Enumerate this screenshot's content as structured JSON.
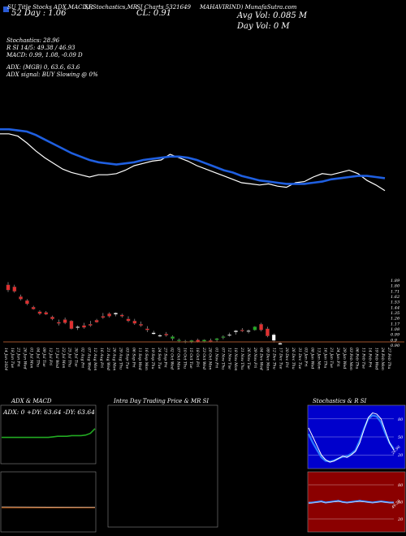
{
  "header": {
    "studies_label": "SU Title Stocks ADX,MACD,R",
    "studies_label2": "SI,Stochastics,MR",
    "mid_label": "SI Charts 5321649",
    "company_label": "MAHAVIRIND) MunafaSutra.com",
    "price_label": "CL: 0.91",
    "x52_label": "52 Day : 1.06",
    "avg_vol": "Avg Vol: 0.085 M",
    "day_vol": "Day Vol: 0   M"
  },
  "indicators": {
    "stoch": "Stochastics: 28.96",
    "rsi": "R        SI 14/5: 49.38 / 46.93",
    "macd": "MACD: 0.99,  1.08,  -0.09 D",
    "adx": "ADX:                        (MGB) 0,  63.6,  63.6",
    "signal": "ADX  signal:                                 BUY Slowing @ 0%"
  },
  "colors": {
    "blue": "#1f5fe0",
    "white": "#ffffff",
    "red": "#e03030",
    "green": "#22aa22",
    "axis": "#a0522d",
    "rsi_bg": "#8b0000",
    "panel_blue": "#0000cc"
  },
  "panels": {
    "adx_title": "ADX  & MACD",
    "adx_values": "ADX: 0   +DY: 63.64   -DY: 63.64",
    "mr_title": "Intra  Day Trading Price  & MR                    SI",
    "stoch_title": "Stochastics & R                  SI",
    "stoch_ticks": [
      "80",
      "50",
      "20"
    ],
    "rsi_ticks": [
      "80",
      "50",
      "20"
    ],
    "stoch_tag": "28.96",
    "rsi_tag": "49.38"
  },
  "chart_data": {
    "type": "candlestick",
    "price_ticks": [
      "1.89",
      "1.80",
      "1.71",
      "1.62",
      "1.53",
      "1.44",
      "1.35",
      "1.26",
      "1.17",
      "1.08",
      "0.99",
      "0.9",
      "0.90"
    ],
    "ylim": [
      0.9,
      1.89
    ],
    "dates": [
      "14 Jun 2024",
      "18 Jun Tue",
      "21 Jun Fri",
      "26 Jun Wed",
      "01 Jul Mon",
      "04 Jul Thu",
      "09 Jul Tue",
      "12 Jul Fri",
      "17 Jul Wed",
      "22 Jul Mon",
      "25 Jul Thu",
      "30 Jul Tue",
      "02 Aug Fri",
      "07 Aug Wed",
      "12 Aug Mon",
      "16 Aug Fri",
      "21 Aug Wed",
      "26 Aug Mon",
      "29 Aug Thu",
      "03 Sep Tue",
      "06 Sep Fri",
      "11 Sep Wed",
      "16 Sep Mon",
      "19 Sep Thu",
      "24 Sep Tue",
      "27 Sep Fri",
      "02 Oct Wed",
      "07 Oct Mon",
      "10 Oct Thu",
      "15 Oct Tue",
      "18 Oct Fri",
      "23 Oct Wed",
      "28 Oct Mon",
      "01 Nov Fri",
      "07 Nov Thu",
      "12 Nov Tue",
      "18 Nov Mon",
      "21 Nov Thu",
      "26 Nov Tue",
      "29 Nov Fri",
      "04 Dec Wed",
      "09 Dec Mon",
      "12 Dec Thu",
      "17 Dec Tue",
      "20 Dec Fri",
      "26 Dec Thu",
      "31 Dec Tue",
      "03 Jan Fri",
      "08 Jan Wed",
      "13 Jan Mon",
      "16 Jan Thu",
      "21 Jan Tue",
      "24 Jan Fri",
      "29 Jan Wed",
      "03 Feb Mon",
      "06 Feb Thu",
      "11 Feb Tue",
      "14 Feb Fri",
      "19 Feb Wed",
      "24 Feb Mon",
      "27 Feb Thu"
    ],
    "candles": [
      {
        "o": 1.82,
        "h": 1.86,
        "l": 1.71,
        "c": 1.74,
        "color": "red"
      },
      {
        "o": 1.79,
        "h": 1.82,
        "l": 1.7,
        "c": 1.72,
        "color": "red"
      },
      {
        "o": 1.64,
        "h": 1.67,
        "l": 1.58,
        "c": 1.6,
        "color": "red"
      },
      {
        "o": 1.58,
        "h": 1.6,
        "l": 1.51,
        "c": 1.53,
        "color": "red"
      },
      {
        "o": 1.48,
        "h": 1.5,
        "l": 1.44,
        "c": 1.45,
        "color": "red"
      },
      {
        "o": 1.41,
        "h": 1.43,
        "l": 1.36,
        "c": 1.38,
        "color": "red"
      },
      {
        "o": 1.4,
        "h": 1.42,
        "l": 1.36,
        "c": 1.37,
        "color": "red"
      },
      {
        "o": 1.33,
        "h": 1.35,
        "l": 1.28,
        "c": 1.3,
        "color": "red"
      },
      {
        "o": 1.25,
        "h": 1.29,
        "l": 1.2,
        "c": 1.23,
        "color": "red"
      },
      {
        "o": 1.29,
        "h": 1.32,
        "l": 1.22,
        "c": 1.24,
        "color": "red"
      },
      {
        "o": 1.27,
        "h": 1.28,
        "l": 1.14,
        "c": 1.15,
        "color": "red"
      },
      {
        "o": 1.17,
        "h": 1.2,
        "l": 1.13,
        "c": 1.18,
        "color": "white"
      },
      {
        "o": 1.2,
        "h": 1.24,
        "l": 1.15,
        "c": 1.17,
        "color": "red"
      },
      {
        "o": 1.22,
        "h": 1.27,
        "l": 1.18,
        "c": 1.2,
        "color": "red"
      },
      {
        "o": 1.28,
        "h": 1.3,
        "l": 1.24,
        "c": 1.25,
        "color": "red"
      },
      {
        "o": 1.34,
        "h": 1.39,
        "l": 1.3,
        "c": 1.32,
        "color": "red"
      },
      {
        "o": 1.38,
        "h": 1.4,
        "l": 1.32,
        "c": 1.34,
        "color": "red"
      },
      {
        "o": 1.37,
        "h": 1.4,
        "l": 1.34,
        "c": 1.39,
        "color": "white"
      },
      {
        "o": 1.36,
        "h": 1.38,
        "l": 1.32,
        "c": 1.34,
        "color": "red"
      },
      {
        "o": 1.3,
        "h": 1.34,
        "l": 1.25,
        "c": 1.27,
        "color": "red"
      },
      {
        "o": 1.27,
        "h": 1.3,
        "l": 1.21,
        "c": 1.23,
        "color": "red"
      },
      {
        "o": 1.22,
        "h": 1.26,
        "l": 1.18,
        "c": 1.2,
        "color": "red"
      },
      {
        "o": 1.15,
        "h": 1.19,
        "l": 1.1,
        "c": 1.13,
        "color": "red"
      },
      {
        "o": 1.09,
        "h": 1.12,
        "l": 1.06,
        "c": 1.07,
        "color": "white"
      },
      {
        "o": 1.05,
        "h": 1.07,
        "l": 1.02,
        "c": 1.04,
        "color": "white"
      },
      {
        "o": 1.07,
        "h": 1.1,
        "l": 1.03,
        "c": 1.05,
        "color": "red"
      },
      {
        "o": 1.03,
        "h": 1.05,
        "l": 0.97,
        "c": 1.0,
        "color": "green"
      },
      {
        "o": 0.97,
        "h": 1.0,
        "l": 0.94,
        "c": 0.98,
        "color": "green"
      },
      {
        "o": 0.96,
        "h": 0.98,
        "l": 0.93,
        "c": 0.95,
        "color": "green"
      },
      {
        "o": 0.95,
        "h": 0.98,
        "l": 0.93,
        "c": 0.97,
        "color": "green"
      },
      {
        "o": 0.98,
        "h": 1.0,
        "l": 0.94,
        "c": 0.95,
        "color": "red"
      },
      {
        "o": 0.96,
        "h": 0.99,
        "l": 0.94,
        "c": 0.98,
        "color": "green"
      },
      {
        "o": 0.97,
        "h": 1.0,
        "l": 0.94,
        "c": 0.96,
        "color": "red"
      },
      {
        "o": 0.98,
        "h": 1.01,
        "l": 0.95,
        "c": 1.0,
        "color": "green"
      },
      {
        "o": 1.02,
        "h": 1.05,
        "l": 0.99,
        "c": 1.03,
        "color": "green"
      },
      {
        "o": 1.06,
        "h": 1.09,
        "l": 1.03,
        "c": 1.05,
        "color": "white"
      },
      {
        "o": 1.1,
        "h": 1.13,
        "l": 1.06,
        "c": 1.12,
        "color": "white"
      },
      {
        "o": 1.13,
        "h": 1.16,
        "l": 1.1,
        "c": 1.12,
        "color": "red"
      },
      {
        "o": 1.11,
        "h": 1.14,
        "l": 1.08,
        "c": 1.12,
        "color": "white"
      },
      {
        "o": 1.13,
        "h": 1.19,
        "l": 1.12,
        "c": 1.18,
        "color": "green"
      },
      {
        "o": 1.22,
        "h": 1.24,
        "l": 1.11,
        "c": 1.13,
        "color": "red"
      },
      {
        "o": 1.15,
        "h": 1.18,
        "l": 1.02,
        "c": 1.04,
        "color": "red"
      },
      {
        "o": 1.06,
        "h": 1.08,
        "l": 0.94,
        "c": 0.97,
        "color": "white"
      },
      {
        "o": 0.93,
        "h": 0.95,
        "l": 0.91,
        "c": 0.91,
        "color": "white"
      }
    ],
    "ma_blue_label": "moving average (blue)",
    "overlay_y_range": [
      0,
      100
    ],
    "blue_line": [
      72,
      72,
      71,
      70,
      67,
      63,
      59,
      55,
      51,
      48,
      45,
      43,
      42,
      41,
      42,
      43,
      45,
      46,
      47,
      48,
      48,
      47,
      45,
      42,
      39,
      36,
      34,
      31,
      29,
      27,
      26,
      25,
      24,
      24,
      24,
      25,
      26,
      28,
      29,
      30,
      31,
      31,
      30,
      29
    ],
    "white_line": [
      68,
      68,
      66,
      60,
      53,
      47,
      42,
      37,
      34,
      32,
      30,
      32,
      32,
      33,
      36,
      40,
      42,
      44,
      45,
      50,
      47,
      44,
      40,
      37,
      34,
      31,
      28,
      25,
      24,
      23,
      24,
      22,
      21,
      25,
      26,
      30,
      33,
      32,
      34,
      36,
      33,
      27,
      23,
      18
    ],
    "adx_panel_line": [
      45,
      45,
      45,
      45,
      45,
      45,
      45,
      45,
      45,
      45,
      45,
      46,
      47,
      47,
      47,
      48,
      48,
      48,
      49,
      52,
      60
    ],
    "stoch_line": [
      65,
      50,
      35,
      20,
      12,
      8,
      10,
      14,
      18,
      16,
      20,
      26,
      40,
      62,
      82,
      90,
      88,
      80,
      60,
      40,
      28
    ],
    "stoch_signal": [
      55,
      40,
      28,
      16,
      10,
      9,
      11,
      14,
      17,
      18,
      22,
      28,
      44,
      64,
      80,
      86,
      84,
      74,
      56,
      40,
      30
    ],
    "rsi_line": [
      48,
      49,
      50,
      51,
      49,
      50,
      51,
      52,
      50,
      49,
      50,
      51,
      52,
      51,
      50,
      49,
      50,
      51,
      50,
      49,
      49
    ]
  }
}
